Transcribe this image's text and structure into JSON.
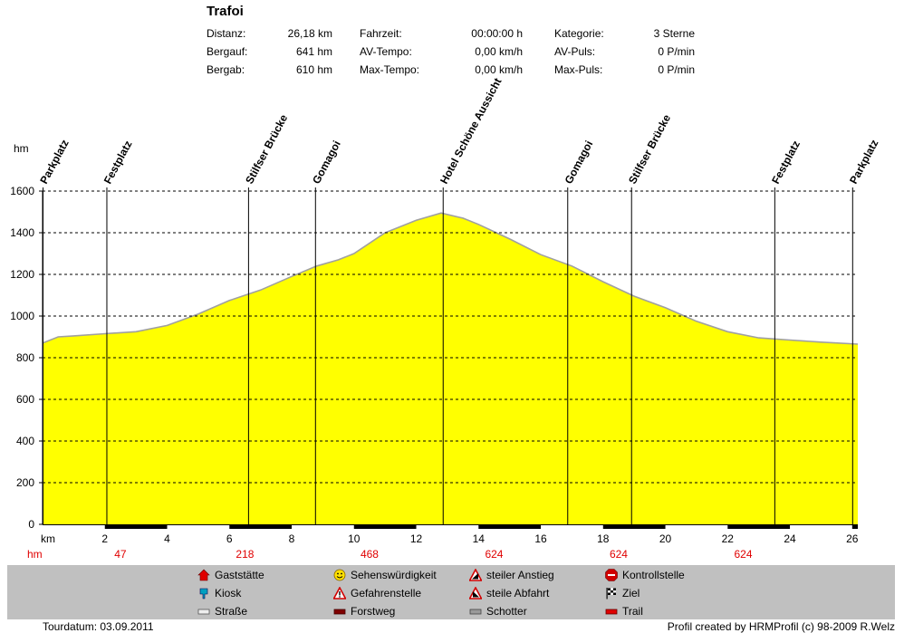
{
  "title": "Trafoi",
  "stats": [
    {
      "label": "Distanz:",
      "value": "26,18 km"
    },
    {
      "label": "Bergauf:",
      "value": "641 hm"
    },
    {
      "label": "Bergab:",
      "value": "610 hm"
    },
    {
      "label": "Fahrzeit:",
      "value": "00:00:00 h"
    },
    {
      "label": "AV-Tempo:",
      "value": "0,00 km/h"
    },
    {
      "label": "Max-Tempo:",
      "value": "0,00 km/h"
    },
    {
      "label": "Kategorie:",
      "value": "3 Sterne"
    },
    {
      "label": "AV-Puls:",
      "value": "0 P/min"
    },
    {
      "label": "Max-Puls:",
      "value": "0 P/min"
    }
  ],
  "chart_data": {
    "type": "area",
    "ylabel": "hm",
    "xlabel": "km",
    "xlim": [
      0,
      26.18
    ],
    "ylim": [
      0,
      1600
    ],
    "yticks": [
      0,
      200,
      400,
      600,
      800,
      1000,
      1200,
      1400,
      1600
    ],
    "xticks": [
      2,
      4,
      6,
      8,
      10,
      12,
      14,
      16,
      18,
      20,
      22,
      24,
      26
    ],
    "grid": "horizontal dashed",
    "fill_color": "#ffff00",
    "line_color": "#a0a0a0",
    "x": [
      0,
      0.5,
      1,
      2,
      3,
      4,
      5,
      6,
      7,
      8,
      8.8,
      9.5,
      10,
      11,
      12,
      12.8,
      13.5,
      14,
      15,
      16,
      17,
      18,
      19,
      20,
      21,
      22,
      23,
      24,
      25,
      26.18
    ],
    "y": [
      870,
      900,
      905,
      915,
      925,
      955,
      1010,
      1075,
      1125,
      1190,
      1240,
      1270,
      1300,
      1400,
      1460,
      1495,
      1470,
      1440,
      1370,
      1295,
      1240,
      1165,
      1095,
      1040,
      975,
      925,
      895,
      885,
      875,
      865
    ],
    "waypoints": [
      {
        "name": "Parkplatz",
        "km": 0
      },
      {
        "name": "Festplatz",
        "km": 2.05
      },
      {
        "name": "Stilfser Brücke",
        "km": 6.6
      },
      {
        "name": "Gomagoi",
        "km": 8.75
      },
      {
        "name": "Hotel Schöne Aussicht",
        "km": 12.85
      },
      {
        "name": "Gomagoi",
        "km": 16.85
      },
      {
        "name": "Stilfser Brücke",
        "km": 18.9
      },
      {
        "name": "Festplatz",
        "km": 23.5
      },
      {
        "name": "Parkplatz",
        "km": 26.0
      }
    ],
    "height_row_label": "hm",
    "height_labels": [
      {
        "km": 2.5,
        "text": "47"
      },
      {
        "km": 6.5,
        "text": "218"
      },
      {
        "km": 10.5,
        "text": "468"
      },
      {
        "km": 14.5,
        "text": "624"
      },
      {
        "km": 18.5,
        "text": "624"
      },
      {
        "km": 22.5,
        "text": "624"
      }
    ]
  },
  "legend": [
    {
      "label": "Gaststätte",
      "icon": "restaurant-icon"
    },
    {
      "label": "Kiosk",
      "icon": "kiosk-icon"
    },
    {
      "label": "Straße",
      "icon": "road-icon"
    },
    {
      "label": "Sehenswürdigkeit",
      "icon": "smiley-icon"
    },
    {
      "label": "Gefahrenstelle",
      "icon": "danger-icon"
    },
    {
      "label": "Forstweg",
      "icon": "forest-path-icon"
    },
    {
      "label": "steiler Anstieg",
      "icon": "steep-ascent-icon"
    },
    {
      "label": "steile Abfahrt",
      "icon": "steep-descent-icon"
    },
    {
      "label": "Schotter",
      "icon": "gravel-icon"
    },
    {
      "label": "Kontrollstelle",
      "icon": "stop-icon"
    },
    {
      "label": "Ziel",
      "icon": "finish-flag-icon"
    },
    {
      "label": "Trail",
      "icon": "trail-icon"
    }
  ],
  "footer": {
    "left": "Tourdatum: 03.09.2011",
    "right": "Profil created by HRMProfil (c) 98-2009 R.Welz"
  }
}
